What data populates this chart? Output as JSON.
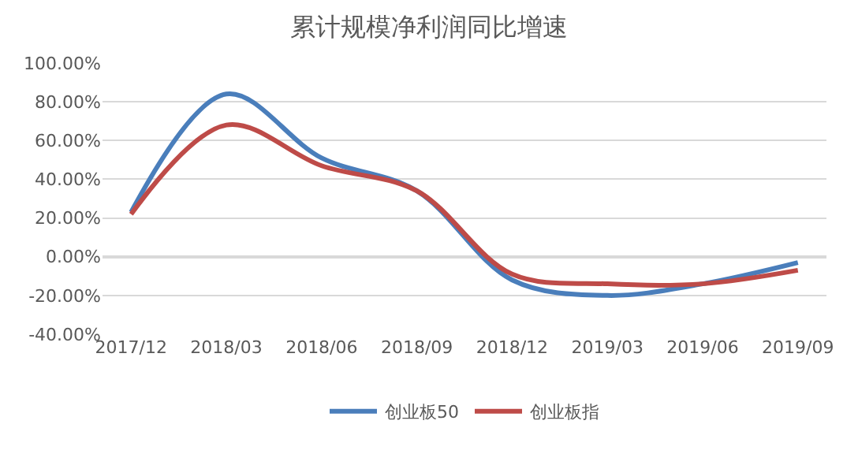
{
  "chart_data": {
    "type": "line",
    "title": "累计规模净利润同比增速",
    "categories": [
      "2017/12",
      "2018/03",
      "2018/06",
      "2018/09",
      "2018/12",
      "2019/03",
      "2019/06",
      "2019/09"
    ],
    "series": [
      {
        "name": "创业板50",
        "color": "#4a7ebb",
        "values": [
          23,
          84,
          51,
          34,
          -12,
          -20,
          -14,
          -3
        ]
      },
      {
        "name": "创业板指",
        "color": "#be4b48",
        "values": [
          22,
          68,
          47,
          34,
          -9,
          -14,
          -14,
          -7
        ]
      }
    ],
    "ylim": [
      -40,
      100
    ],
    "yticks": [
      {
        "value": -40,
        "label": "-40.00%"
      },
      {
        "value": -20,
        "label": "-20.00%"
      },
      {
        "value": 0,
        "label": "0.00%"
      },
      {
        "value": 20,
        "label": "20.00%"
      },
      {
        "value": 40,
        "label": "40.00%"
      },
      {
        "value": 60,
        "label": "60.00%"
      },
      {
        "value": 80,
        "label": "80.00%"
      },
      {
        "value": 100,
        "label": "100.00%"
      }
    ],
    "grid": "y",
    "legend": "bottom",
    "marker": "none",
    "line_style": "solid"
  }
}
